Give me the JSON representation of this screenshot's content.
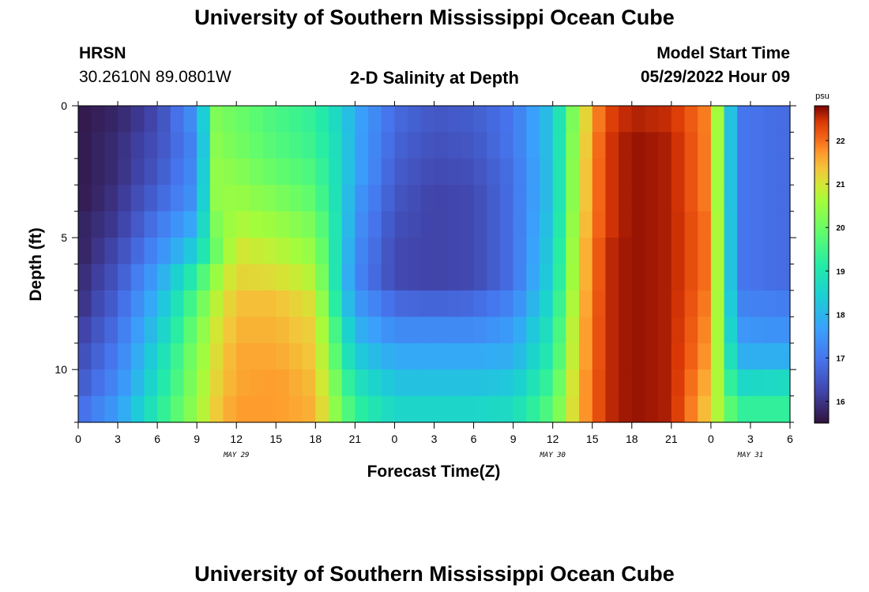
{
  "header": {
    "title": "University of Southern Mississippi Ocean Cube",
    "station": "HRSN",
    "coords": "30.2610N  89.0801W",
    "plot_title": "2-D Salinity at Depth",
    "model_start_label": "Model Start Time",
    "model_start_value": "05/29/2022 Hour 09"
  },
  "footer": {
    "title": "University of Southern Mississippi Ocean Cube"
  },
  "chart_data": {
    "type": "heatmap",
    "title": "2-D Salinity at Depth",
    "xlabel": "Forecast Time(Z)",
    "ylabel": "Depth (ft)",
    "x_hours_range": [
      0,
      54
    ],
    "y_depth_range": [
      0,
      12
    ],
    "x_tick_hours": [
      0,
      3,
      6,
      9,
      12,
      15,
      18,
      21,
      24,
      27,
      30,
      33,
      36,
      39,
      42,
      45,
      48,
      51,
      54
    ],
    "x_tick_labels": [
      "0",
      "3",
      "6",
      "9",
      "12",
      "15",
      "18",
      "21",
      "0",
      "3",
      "6",
      "9",
      "12",
      "15",
      "18",
      "21",
      "0",
      "3",
      "6"
    ],
    "y_ticks": [
      0,
      5,
      10
    ],
    "y_tick_labels": [
      "0",
      "5",
      "10"
    ],
    "date_labels": [
      {
        "text": "MAY 29",
        "hour": 12
      },
      {
        "text": "MAY 30",
        "hour": 36
      },
      {
        "text": "MAY 31",
        "hour": 51
      }
    ],
    "colorbar": {
      "unit": "psu",
      "range": [
        15.5,
        22.8
      ],
      "ticks": [
        16,
        17,
        18,
        19,
        20,
        21,
        22
      ],
      "tick_labels": [
        "16",
        "17",
        "18",
        "19",
        "20",
        "21",
        "22"
      ]
    },
    "depth_levels_ft": [
      0.5,
      1.5,
      2.5,
      3.5,
      4.5,
      5.5,
      6.5,
      7.5,
      8.5,
      9.5,
      10.5,
      11.5
    ],
    "time_samples_hr": [
      0,
      3,
      6,
      9,
      10.5,
      12,
      15,
      18,
      20,
      21,
      24,
      27,
      30,
      33,
      36,
      38,
      40,
      42,
      45,
      48,
      50,
      54
    ],
    "salinity_psu": [
      [
        15.6,
        15.8,
        16.3,
        17.5,
        20.2,
        20.0,
        19.6,
        19.3,
        18.5,
        17.8,
        16.8,
        16.5,
        16.6,
        17.0,
        18.3,
        20.8,
        22.3,
        22.6,
        22.5,
        21.8,
        17.0,
        16.8
      ],
      [
        15.6,
        15.9,
        16.4,
        17.3,
        20.3,
        20.1,
        19.7,
        19.4,
        18.6,
        17.8,
        16.7,
        16.4,
        16.5,
        17.0,
        18.3,
        20.9,
        22.4,
        22.7,
        22.6,
        21.8,
        17.0,
        16.8
      ],
      [
        15.6,
        15.9,
        16.5,
        17.4,
        20.4,
        20.3,
        19.9,
        19.6,
        18.6,
        17.8,
        16.6,
        16.3,
        16.4,
        16.9,
        18.3,
        21.0,
        22.4,
        22.7,
        22.6,
        21.8,
        17.0,
        16.8
      ],
      [
        15.6,
        16.0,
        16.7,
        17.5,
        20.4,
        20.5,
        20.2,
        19.8,
        18.6,
        17.6,
        16.5,
        16.2,
        16.3,
        16.9,
        18.3,
        21.0,
        22.4,
        22.7,
        22.6,
        21.8,
        17.0,
        16.8
      ],
      [
        15.7,
        16.1,
        17.0,
        17.9,
        20.2,
        20.7,
        20.5,
        20.1,
        18.6,
        17.5,
        16.4,
        16.2,
        16.3,
        16.9,
        18.4,
        21.1,
        22.4,
        22.7,
        22.6,
        21.9,
        17.0,
        16.8
      ],
      [
        15.7,
        16.3,
        17.3,
        18.5,
        20.0,
        21.0,
        20.8,
        20.4,
        18.5,
        17.4,
        16.3,
        16.2,
        16.3,
        16.9,
        18.5,
        21.2,
        22.5,
        22.7,
        22.6,
        21.9,
        17.0,
        16.8
      ],
      [
        15.8,
        16.5,
        17.7,
        19.3,
        20.5,
        21.2,
        21.1,
        20.7,
        18.4,
        17.3,
        16.3,
        16.2,
        16.3,
        16.9,
        18.6,
        21.2,
        22.5,
        22.7,
        22.6,
        21.9,
        17.0,
        16.8
      ],
      [
        15.9,
        16.7,
        18.0,
        19.8,
        20.8,
        21.4,
        21.4,
        21.0,
        18.6,
        17.6,
        16.8,
        16.7,
        16.8,
        17.2,
        18.8,
        21.3,
        22.5,
        22.7,
        22.6,
        21.8,
        17.2,
        17.1
      ],
      [
        16.1,
        16.9,
        18.3,
        20.1,
        21.0,
        21.5,
        21.5,
        21.2,
        19.0,
        18.0,
        17.3,
        17.3,
        17.3,
        17.6,
        19.0,
        21.4,
        22.5,
        22.7,
        22.6,
        21.7,
        17.5,
        17.4
      ],
      [
        16.3,
        17.1,
        18.6,
        20.3,
        21.1,
        21.6,
        21.6,
        21.3,
        19.3,
        18.4,
        17.8,
        17.8,
        17.8,
        17.9,
        19.2,
        21.4,
        22.5,
        22.7,
        22.6,
        21.6,
        17.9,
        17.9
      ],
      [
        16.5,
        17.3,
        18.8,
        20.4,
        21.2,
        21.6,
        21.7,
        21.4,
        19.7,
        18.9,
        18.2,
        18.2,
        18.2,
        18.3,
        19.5,
        21.5,
        22.5,
        22.7,
        22.6,
        21.4,
        18.6,
        18.7
      ],
      [
        16.8,
        17.6,
        19.1,
        20.5,
        21.3,
        21.7,
        21.7,
        21.5,
        20.0,
        19.3,
        18.6,
        18.6,
        18.6,
        18.7,
        19.8,
        21.5,
        22.5,
        22.7,
        22.6,
        21.2,
        19.3,
        19.3
      ]
    ]
  }
}
